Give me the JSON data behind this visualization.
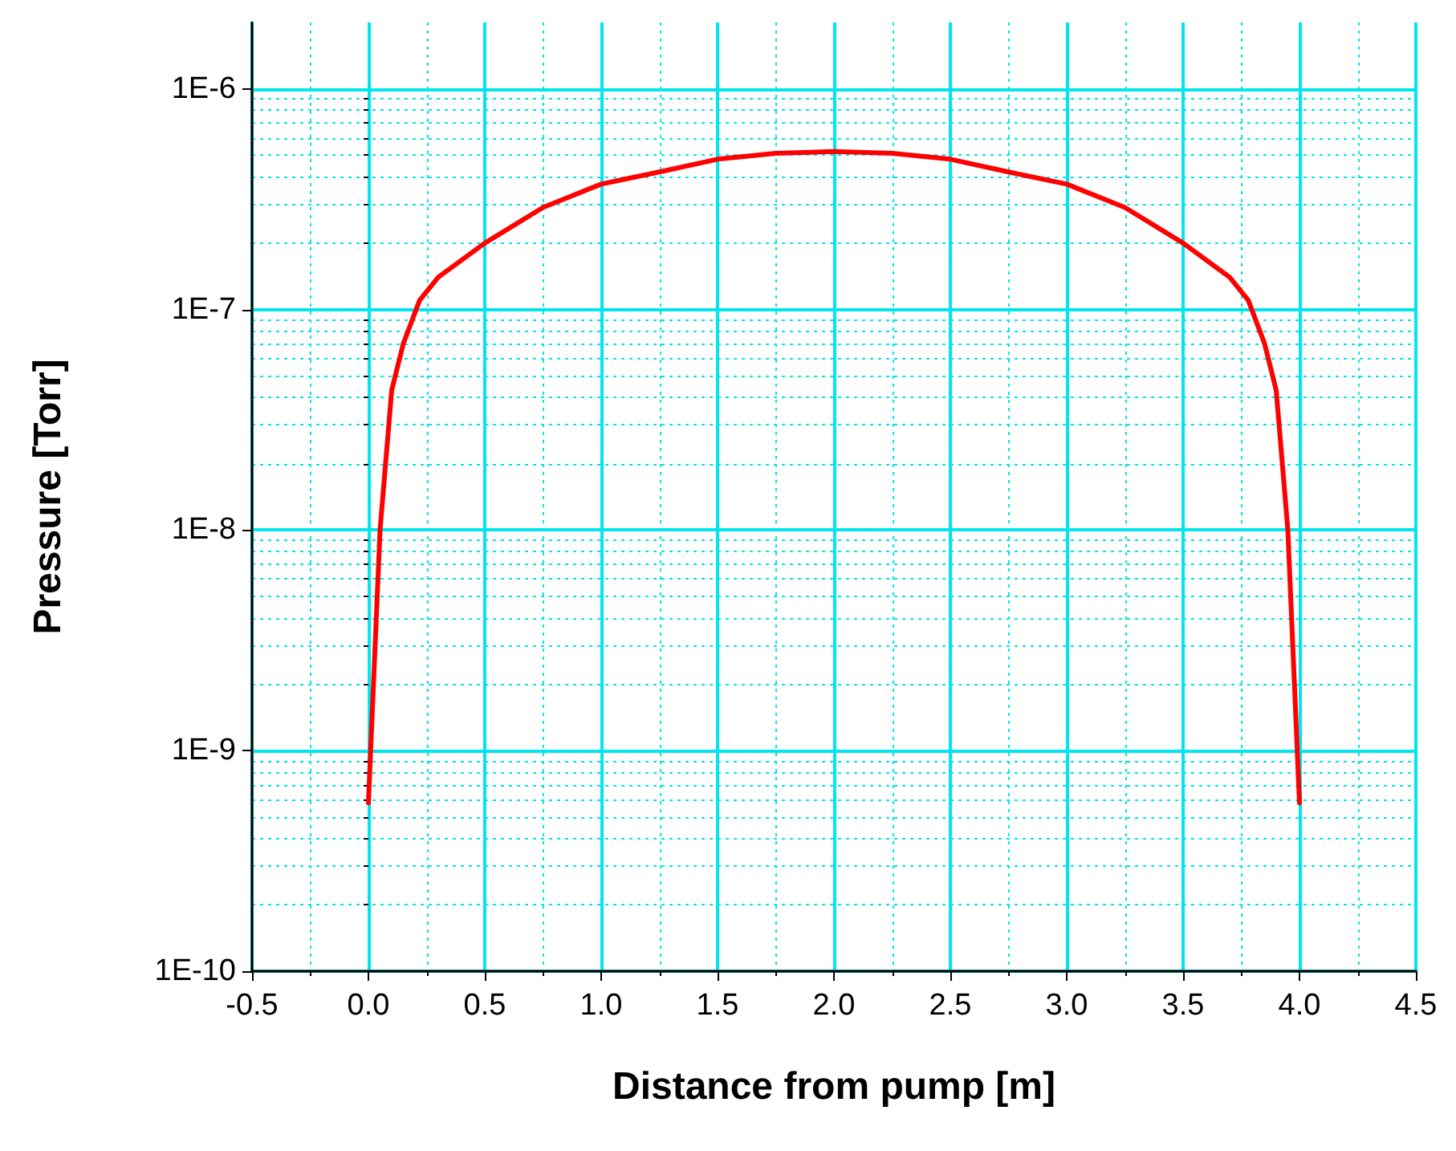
{
  "chart_data": {
    "type": "line",
    "xlabel": "Distance from pump [m]",
    "ylabel": "Pressure [Torr]",
    "log": "y",
    "grid": true,
    "marker": "none",
    "line_style": "solid",
    "xlim": [
      -0.5,
      4.5
    ],
    "ylim": [
      1e-10,
      2e-06
    ],
    "xticks": [
      {
        "value": -0.5,
        "label": "-0.5"
      },
      {
        "value": -0.25,
        "label": null
      },
      {
        "value": 0,
        "label": "0.0"
      },
      {
        "value": 0.25,
        "label": null
      },
      {
        "value": 0.5,
        "label": "0.5"
      },
      {
        "value": 0.75,
        "label": null
      },
      {
        "value": 1,
        "label": "1.0"
      },
      {
        "value": 1.25,
        "label": null
      },
      {
        "value": 1.5,
        "label": "1.5"
      },
      {
        "value": 1.75,
        "label": null
      },
      {
        "value": 2,
        "label": "2.0"
      },
      {
        "value": 2.25,
        "label": null
      },
      {
        "value": 2.5,
        "label": "2.5"
      },
      {
        "value": 2.75,
        "label": null
      },
      {
        "value": 3,
        "label": "3.0"
      },
      {
        "value": 3.25,
        "label": null
      },
      {
        "value": 3.5,
        "label": "3.5"
      },
      {
        "value": 3.75,
        "label": null
      },
      {
        "value": 4,
        "label": "4.0"
      },
      {
        "value": 4.25,
        "label": null
      },
      {
        "value": 4.5,
        "label": "4.5"
      }
    ],
    "yticks": [
      {
        "value": 1e-10,
        "label": "1E-10"
      },
      {
        "value": 2e-10,
        "label": null
      },
      {
        "value": 3e-10,
        "label": null
      },
      {
        "value": 4e-10,
        "label": null
      },
      {
        "value": 5e-10,
        "label": null
      },
      {
        "value": 6e-10,
        "label": null
      },
      {
        "value": 7e-10,
        "label": null
      },
      {
        "value": 8e-10,
        "label": null
      },
      {
        "value": 9e-10,
        "label": null
      },
      {
        "value": 1e-09,
        "label": "1E-9"
      },
      {
        "value": 2e-09,
        "label": null
      },
      {
        "value": 3e-09,
        "label": null
      },
      {
        "value": 4e-09,
        "label": null
      },
      {
        "value": 5e-09,
        "label": null
      },
      {
        "value": 6e-09,
        "label": null
      },
      {
        "value": 7e-09,
        "label": null
      },
      {
        "value": 8e-09,
        "label": null
      },
      {
        "value": 9e-09,
        "label": null
      },
      {
        "value": 1e-08,
        "label": "1E-8"
      },
      {
        "value": 2e-08,
        "label": null
      },
      {
        "value": 3e-08,
        "label": null
      },
      {
        "value": 4e-08,
        "label": null
      },
      {
        "value": 5e-08,
        "label": null
      },
      {
        "value": 6e-08,
        "label": null
      },
      {
        "value": 7e-08,
        "label": null
      },
      {
        "value": 8e-08,
        "label": null
      },
      {
        "value": 9e-08,
        "label": null
      },
      {
        "value": 1e-07,
        "label": "1E-7"
      },
      {
        "value": 2e-07,
        "label": null
      },
      {
        "value": 3e-07,
        "label": null
      },
      {
        "value": 4e-07,
        "label": null
      },
      {
        "value": 5e-07,
        "label": null
      },
      {
        "value": 6e-07,
        "label": null
      },
      {
        "value": 7e-07,
        "label": null
      },
      {
        "value": 8e-07,
        "label": null
      },
      {
        "value": 9e-07,
        "label": null
      },
      {
        "value": 1e-06,
        "label": "1E-6"
      }
    ],
    "x": [
      0,
      0.05,
      0.1,
      0.15,
      0.22,
      0.3,
      0.5,
      0.75,
      1,
      1.25,
      1.5,
      1.75,
      2,
      2.25,
      2.5,
      2.75,
      3,
      3.25,
      3.5,
      3.7,
      3.78,
      3.85,
      3.9,
      3.95,
      4
    ],
    "series": [
      {
        "color": "#ff0000",
        "values": [
          5.8e-10,
          1e-08,
          4.3e-08,
          7e-08,
          1.1e-07,
          1.4e-07,
          2e-07,
          2.9e-07,
          3.7e-07,
          4.2e-07,
          4.8e-07,
          5.1e-07,
          5.2e-07,
          5.1e-07,
          4.8e-07,
          4.2e-07,
          3.7e-07,
          2.9e-07,
          2e-07,
          1.4e-07,
          1.1e-07,
          7e-08,
          4.3e-08,
          1e-08,
          5.8e-10
        ]
      }
    ]
  }
}
